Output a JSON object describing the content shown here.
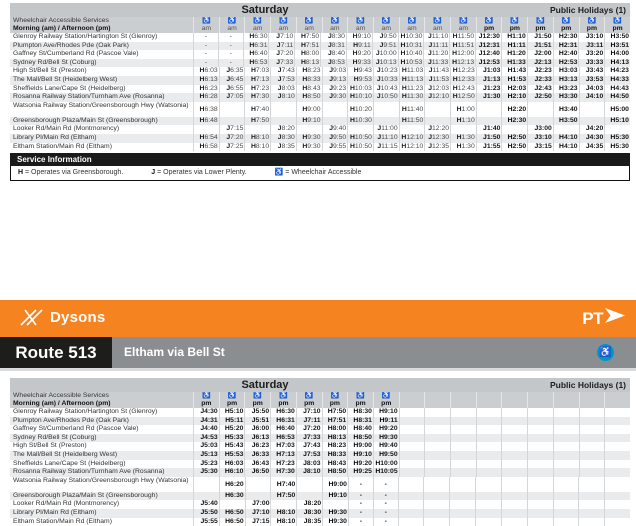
{
  "branding": {
    "operator": "Dysons",
    "ptv_logo_text": "PT",
    "route_number": "Route 513",
    "destination": "Eltham via Bell St"
  },
  "colors": {
    "orange": "#F5831F",
    "band_gray": "#8B8E91",
    "black_box": "#1D1D1B",
    "ptv_blue_circle": "#0096C7",
    "wheelchair_icon_blue": "#3C5FAA",
    "header_gray": "#C3C7CA",
    "row_alt_gray": "#E9EBED"
  },
  "legend": {
    "title": "Service Information",
    "items": [
      {
        "symbol": "H",
        "text": "= Operates via Greensborough."
      },
      {
        "symbol": "J",
        "text": "= Operates via Lower Plenty."
      },
      {
        "symbol": "♿",
        "text": "= Wheelchair Accessible"
      }
    ]
  },
  "tables": [
    {
      "day": "Saturday",
      "holiday": "Public Holidays (1)",
      "accessible_label": "Wheelchair Accessible Services",
      "period_label": "Morning (am) / Afternoon (pm)",
      "periods": [
        "am",
        "am",
        "am",
        "am",
        "am",
        "am",
        "am",
        "am",
        "am",
        "am",
        "am",
        "pm",
        "pm",
        "pm",
        "pm",
        "pm",
        "pm"
      ],
      "stations": [
        "Glenroy Railway Station/Hartington St (Glenroy)",
        "Plumpton Ave/Rhodes Pde (Oak Park)",
        "Gaffney St/Cumberland Rd (Pascoe Vale)",
        "Sydney Rd/Bell St (Coburg)",
        "High St/Bell St (Preston)",
        "The Mall/Bell St (Heidelberg West)",
        "Sheffields Lane/Cape St (Heidelberg)",
        "Rosanna Railway Station/Turnham Ave (Rosanna)",
        "Watsonia Railway Station/Greensborough Hwy (Watsonia)",
        "Greensborough Plaza/Main St (Greensborough)",
        "Looker Rd/Main Rd (Montmorency)",
        "Library Pl/Main Rd (Eltham)",
        "Eltham Station/Main Rd (Eltham)"
      ],
      "times": [
        [
          "-",
          "-",
          "H6:30",
          "J7:10",
          "H7:50",
          "J8:30",
          "H9:10",
          "J9:50",
          "H10:30",
          "J11:10",
          "H11:50",
          "J12:30",
          "H1:10",
          "J1:50",
          "H2:30",
          "J3:10",
          "H3:50"
        ],
        [
          "-",
          "-",
          "H6:31",
          "J7:11",
          "H7:51",
          "J8:31",
          "H9:11",
          "J9:51",
          "H10:31",
          "J11:11",
          "H11:51",
          "J12:31",
          "H1:11",
          "J1:51",
          "H2:31",
          "J3:11",
          "H3:51"
        ],
        [
          "-",
          "-",
          "H6:40",
          "J7:20",
          "H8:00",
          "J8:40",
          "H9:20",
          "J10:00",
          "H10:40",
          "J11:20",
          "H12:00",
          "J12:40",
          "H1:20",
          "J2:00",
          "H2:40",
          "J3:20",
          "H4:00"
        ],
        [
          "-",
          "-",
          "H6:53",
          "J7:33",
          "H8:13",
          "J8:53",
          "H9:33",
          "J10:13",
          "H10:53",
          "J11:33",
          "H12:13",
          "J12:53",
          "H1:33",
          "J2:13",
          "H2:53",
          "J3:33",
          "H4:13"
        ],
        [
          "H6:03",
          "J6:35",
          "H7:03",
          "J7:43",
          "H8:23",
          "J9:03",
          "H9:43",
          "J10:23",
          "H11:03",
          "J11:43",
          "H12:23",
          "J1:03",
          "H1:43",
          "J2:23",
          "H3:03",
          "J3:43",
          "H4:23"
        ],
        [
          "H6:13",
          "J6:45",
          "H7:13",
          "J7:53",
          "H8:33",
          "J9:13",
          "H9:53",
          "J10:33",
          "H11:13",
          "J11:53",
          "H12:33",
          "J1:13",
          "H1:53",
          "J2:33",
          "H3:13",
          "J3:53",
          "H4:33"
        ],
        [
          "H6:23",
          "J6:55",
          "H7:23",
          "J8:03",
          "H8:43",
          "J9:23",
          "H10:03",
          "J10:43",
          "H11:23",
          "J12:03",
          "H12:43",
          "J1:23",
          "H2:03",
          "J2:43",
          "H3:23",
          "J4:03",
          "H4:43"
        ],
        [
          "H6:28",
          "J7:05",
          "H7:30",
          "J8:10",
          "H8:50",
          "J9:30",
          "H10:10",
          "J10:50",
          "H11:30",
          "J12:10",
          "H12:50",
          "J1:30",
          "H2:10",
          "J2:50",
          "H3:30",
          "J4:10",
          "H4:50"
        ],
        [
          "H6:38",
          "",
          "H7:40",
          "",
          "H9:00",
          "",
          "H10:20",
          "",
          "H11:40",
          "",
          "H1:00",
          "",
          "H2:20",
          "",
          "H3:40",
          "",
          "H5:00"
        ],
        [
          "H6:48",
          "",
          "H7:50",
          "",
          "H9:10",
          "",
          "H10:30",
          "",
          "H11:50",
          "",
          "H1:10",
          "",
          "H2:30",
          "",
          "H3:50",
          "",
          "H5:10"
        ],
        [
          "",
          "J7:15",
          "",
          "J8:20",
          "",
          "J9:40",
          "",
          "J11:00",
          "",
          "J12:20",
          "",
          "J1:40",
          "",
          "J3:00",
          "",
          "J4:20",
          ""
        ],
        [
          "H6:54",
          "J7:20",
          "H8:10",
          "J8:30",
          "H9:30",
          "J9:50",
          "H10:50",
          "J11:10",
          "H12:10",
          "J12:30",
          "H1:30",
          "J1:50",
          "H2:50",
          "J3:10",
          "H4:10",
          "J4:30",
          "H5:30"
        ],
        [
          "H6:58",
          "J7:25",
          "H8:10",
          "J8:35",
          "H9:30",
          "J9:55",
          "H10:50",
          "J11:15",
          "H12:10",
          "J12:35",
          "H1:30",
          "J1:55",
          "H2:50",
          "J3:15",
          "H4:10",
          "J4:35",
          "H5:30"
        ]
      ]
    },
    {
      "day": "Saturday",
      "holiday": "Public Holidays (1)",
      "accessible_label": "Wheelchair Accessible Services",
      "period_label": "Morning (am) / Afternoon (pm)",
      "periods": [
        "pm",
        "pm",
        "pm",
        "pm",
        "pm",
        "pm",
        "pm",
        "pm",
        "",
        "",
        "",
        "",
        "",
        "",
        "",
        "",
        ""
      ],
      "stations": [
        "Glenroy Railway Station/Hartington St (Glenroy)",
        "Plumpton Ave/Rhodes Pde (Oak Park)",
        "Gaffney St/Cumberland Rd (Pascoe Vale)",
        "Sydney Rd/Bell St (Coburg)",
        "High St/Bell St (Preston)",
        "The Mall/Bell St (Heidelberg West)",
        "Sheffields Lane/Cape St (Heidelberg)",
        "Rosanna Railway Station/Turnham Ave (Rosanna)",
        "Watsonia Railway Station/Greensborough Hwy (Watsonia)",
        "Greensborough Plaza/Main St (Greensborough)",
        "Looker Rd/Main Rd (Montmorency)",
        "Library Pl/Main Rd (Eltham)",
        "Eltham Station/Main Rd (Eltham)"
      ],
      "times": [
        [
          "J4:30",
          "H5:10",
          "J5:50",
          "H6:30",
          "J7:10",
          "H7:50",
          "H8:30",
          "H9:10",
          "",
          "",
          "",
          "",
          "",
          "",
          "",
          "",
          ""
        ],
        [
          "J4:31",
          "H5:11",
          "J5:51",
          "H6:31",
          "J7:11",
          "H7:51",
          "H8:31",
          "H9:11",
          "",
          "",
          "",
          "",
          "",
          "",
          "",
          "",
          ""
        ],
        [
          "J4:40",
          "H5:20",
          "J6:00",
          "H6:40",
          "J7:20",
          "H8:00",
          "H8:40",
          "H9:20",
          "",
          "",
          "",
          "",
          "",
          "",
          "",
          "",
          ""
        ],
        [
          "J4:53",
          "H5:33",
          "J6:13",
          "H6:53",
          "J7:33",
          "H8:13",
          "H8:50",
          "H9:30",
          "",
          "",
          "",
          "",
          "",
          "",
          "",
          "",
          ""
        ],
        [
          "J5:03",
          "H5:43",
          "J6:23",
          "H7:03",
          "J7:43",
          "H8:23",
          "H9:00",
          "H9:40",
          "",
          "",
          "",
          "",
          "",
          "",
          "",
          "",
          ""
        ],
        [
          "J5:13",
          "H5:53",
          "J6:33",
          "H7:13",
          "J7:53",
          "H8:33",
          "H9:10",
          "H9:50",
          "",
          "",
          "",
          "",
          "",
          "",
          "",
          "",
          ""
        ],
        [
          "J5:23",
          "H6:03",
          "J6:43",
          "H7:23",
          "J8:03",
          "H8:43",
          "H9:20",
          "H10:00",
          "",
          "",
          "",
          "",
          "",
          "",
          "",
          "",
          ""
        ],
        [
          "J5:30",
          "H6:10",
          "J6:50",
          "H7:30",
          "J8:10",
          "H8:50",
          "H9:25",
          "H10:05",
          "",
          "",
          "",
          "",
          "",
          "",
          "",
          "",
          ""
        ],
        [
          "",
          "H6:20",
          "",
          "H7:40",
          "",
          "H9:00",
          "-",
          "-",
          "",
          "",
          "",
          "",
          "",
          "",
          "",
          "",
          ""
        ],
        [
          "",
          "H6:30",
          "",
          "H7:50",
          "",
          "H9:10",
          "-",
          "-",
          "",
          "",
          "",
          "",
          "",
          "",
          "",
          "",
          ""
        ],
        [
          "J5:40",
          "",
          "J7:00",
          "",
          "J8:20",
          "",
          "-",
          "-",
          "",
          "",
          "",
          "",
          "",
          "",
          "",
          "",
          ""
        ],
        [
          "J5:50",
          "H6:50",
          "J7:10",
          "H8:10",
          "J8:30",
          "H9:30",
          "-",
          "-",
          "",
          "",
          "",
          "",
          "",
          "",
          "",
          "",
          ""
        ],
        [
          "J5:55",
          "H6:50",
          "J7:15",
          "H8:10",
          "J8:35",
          "H9:30",
          "-",
          "-",
          "",
          "",
          "",
          "",
          "",
          "",
          "",
          "",
          ""
        ]
      ]
    }
  ]
}
